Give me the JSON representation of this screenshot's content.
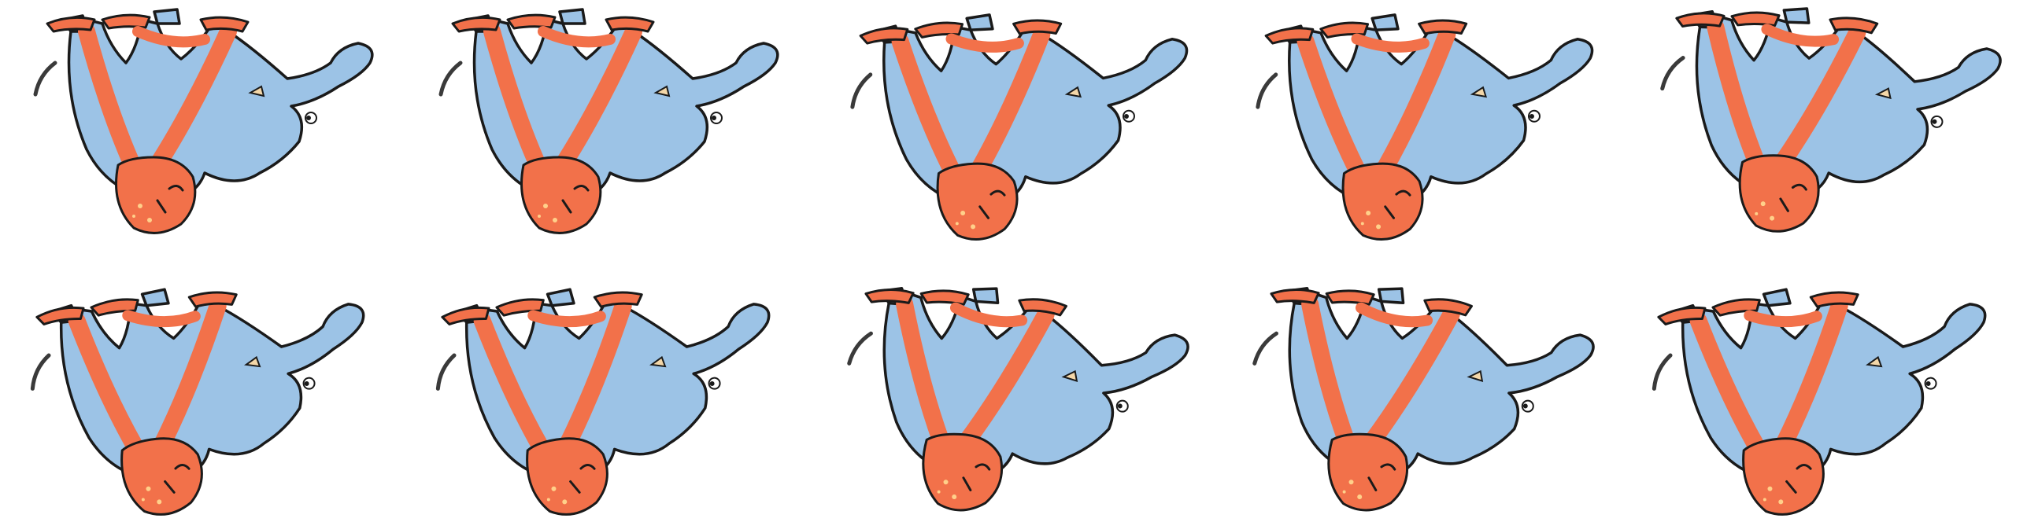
{
  "sheet": {
    "frame_count": 10,
    "rows": 2,
    "columns": 5,
    "colors": {
      "background": "#ffffff",
      "elephant_blue": "#9cc3e6",
      "rabbit_orange": "#f2714a",
      "ink": "#1a1a1a",
      "tail_gray": "#3a3a3a"
    },
    "frames": [
      {
        "id": 1,
        "variant": "a"
      },
      {
        "id": 2,
        "variant": "a"
      },
      {
        "id": 3,
        "variant": "b"
      },
      {
        "id": 4,
        "variant": "b"
      },
      {
        "id": 5,
        "variant": "c"
      },
      {
        "id": 6,
        "variant": "d"
      },
      {
        "id": 7,
        "variant": "d"
      },
      {
        "id": 8,
        "variant": "e"
      },
      {
        "id": 9,
        "variant": "e"
      },
      {
        "id": 10,
        "variant": "d"
      }
    ]
  }
}
